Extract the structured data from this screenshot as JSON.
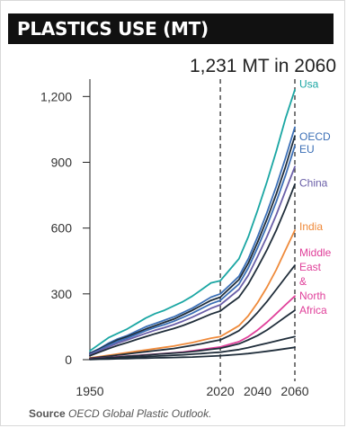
{
  "header": {
    "title": "PLASTICS USE (MT)"
  },
  "source": {
    "label": "Source",
    "text": "OECD Global Plastic Outlook."
  },
  "colors": {
    "usa": "#1aa6a3",
    "oecd_eu": "#3b6fb6",
    "china": "#6a5fa8",
    "india": "#ef8a3a",
    "mena": "#e0409a",
    "dark": "#1f2d3a",
    "axis": "#222222"
  },
  "chart_data": {
    "type": "line",
    "title": "1,231 MT in 2060",
    "xlabel": "",
    "ylabel": "",
    "xlim": [
      1950,
      2060
    ],
    "ylim": [
      0,
      1230
    ],
    "xticks": [
      1950,
      2020,
      2040,
      2060
    ],
    "yticks": [
      0,
      300,
      600,
      900,
      1200
    ],
    "ytick_labels": [
      "0",
      "300",
      "600",
      "900",
      "1,200"
    ],
    "vlines": [
      2020,
      2060
    ],
    "grid": false,
    "legend": "right-labels",
    "x": [
      1950,
      1955,
      1960,
      1965,
      1970,
      1975,
      1980,
      1985,
      1990,
      1995,
      2000,
      2005,
      2010,
      2015,
      2020,
      2025,
      2030,
      2035,
      2040,
      2045,
      2050,
      2055,
      2060
    ],
    "series": [
      {
        "name": "Usa",
        "color": "#1aa6a3",
        "label_y": 1240,
        "values": [
          40,
          70,
          100,
          120,
          140,
          165,
          190,
          210,
          225,
          245,
          265,
          290,
          320,
          350,
          360,
          410,
          460,
          560,
          680,
          810,
          950,
          1100,
          1231
        ]
      },
      {
        "name": "OECD EU",
        "color": "#3b6fb6",
        "label_y": 1000,
        "values": [
          30,
          50,
          75,
          95,
          110,
          130,
          150,
          165,
          180,
          195,
          215,
          235,
          260,
          285,
          300,
          340,
          380,
          460,
          560,
          670,
          790,
          920,
          1060
        ]
      },
      {
        "s": 1,
        "color": "#1f2d3a",
        "values": [
          28,
          48,
          70,
          90,
          105,
          122,
          140,
          155,
          170,
          185,
          205,
          225,
          248,
          270,
          285,
          325,
          365,
          440,
          535,
          640,
          755,
          880,
          1020
        ]
      },
      {
        "s": 2,
        "color": "#3b6fb6",
        "values": [
          25,
          44,
          65,
          84,
          98,
          115,
          132,
          147,
          160,
          175,
          193,
          212,
          234,
          255,
          270,
          308,
          345,
          418,
          510,
          610,
          720,
          840,
          975
        ]
      },
      {
        "name": "China",
        "color": "#6a5fa8",
        "label_y": 790,
        "values": [
          22,
          40,
          58,
          76,
          90,
          105,
          120,
          134,
          146,
          160,
          176,
          194,
          214,
          234,
          250,
          285,
          320,
          385,
          470,
          560,
          660,
          770,
          880
        ]
      },
      {
        "s": 3,
        "color": "#1f2d3a",
        "values": [
          18,
          34,
          50,
          65,
          78,
          92,
          105,
          118,
          130,
          142,
          156,
          172,
          190,
          208,
          222,
          254,
          285,
          345,
          420,
          500,
          590,
          690,
          800
        ]
      },
      {
        "name": "India",
        "color": "#ef8a3a",
        "label_y": 590,
        "values": [
          8,
          14,
          20,
          26,
          32,
          38,
          44,
          50,
          56,
          62,
          70,
          78,
          88,
          98,
          105,
          130,
          155,
          200,
          260,
          330,
          410,
          500,
          590
        ]
      },
      {
        "s": 4,
        "color": "#1f2d3a",
        "values": [
          6,
          11,
          16,
          21,
          26,
          31,
          36,
          41,
          46,
          51,
          58,
          65,
          73,
          82,
          90,
          110,
          132,
          170,
          215,
          265,
          320,
          375,
          430
        ]
      },
      {
        "name": "Middle East & North Africa",
        "color": "#e0409a",
        "label_y": 225,
        "values": [
          4,
          7,
          10,
          13,
          16,
          19,
          22,
          25,
          28,
          31,
          35,
          40,
          46,
          52,
          58,
          70,
          82,
          105,
          135,
          170,
          210,
          250,
          290
        ]
      },
      {
        "s": 5,
        "color": "#1f2d3a",
        "values": [
          3,
          6,
          9,
          12,
          15,
          18,
          21,
          24,
          27,
          30,
          33,
          37,
          42,
          47,
          52,
          62,
          72,
          90,
          110,
          135,
          165,
          195,
          225
        ]
      },
      {
        "s": 6,
        "color": "#1f2d3a",
        "values": [
          2,
          4,
          6,
          8,
          10,
          12,
          14,
          16,
          18,
          20,
          22,
          25,
          28,
          31,
          34,
          40,
          46,
          55,
          65,
          75,
          85,
          95,
          105
        ]
      },
      {
        "s": 7,
        "color": "#1f2d3a",
        "values": [
          1,
          2,
          3,
          4,
          5,
          6,
          7,
          8,
          9,
          10,
          11,
          12,
          14,
          16,
          18,
          21,
          24,
          28,
          33,
          38,
          44,
          50,
          56
        ]
      }
    ]
  }
}
